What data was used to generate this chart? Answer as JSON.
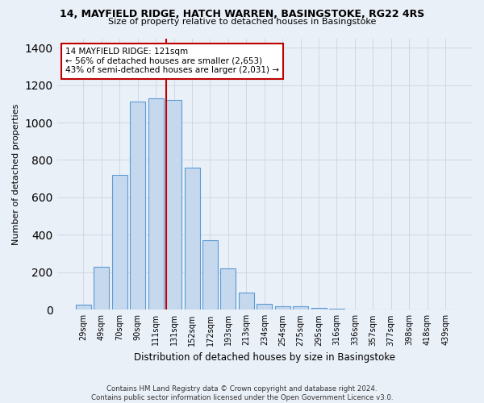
{
  "title_line1": "14, MAYFIELD RIDGE, HATCH WARREN, BASINGSTOKE, RG22 4RS",
  "title_line2": "Size of property relative to detached houses in Basingstoke",
  "xlabel": "Distribution of detached houses by size in Basingstoke",
  "ylabel": "Number of detached properties",
  "footnote": "Contains HM Land Registry data © Crown copyright and database right 2024.\nContains public sector information licensed under the Open Government Licence v3.0.",
  "bar_labels": [
    "29sqm",
    "49sqm",
    "70sqm",
    "90sqm",
    "111sqm",
    "131sqm",
    "152sqm",
    "172sqm",
    "193sqm",
    "213sqm",
    "234sqm",
    "254sqm",
    "275sqm",
    "295sqm",
    "316sqm",
    "336sqm",
    "357sqm",
    "377sqm",
    "398sqm",
    "418sqm",
    "439sqm"
  ],
  "bar_values": [
    25,
    230,
    720,
    1110,
    1130,
    1120,
    760,
    370,
    220,
    90,
    30,
    20,
    18,
    10,
    7,
    0,
    0,
    0,
    0,
    0,
    0
  ],
  "bar_color": "#c5d8ed",
  "bar_edgecolor": "#5b9bd5",
  "highlight_index": 5,
  "highlight_color": "#c00000",
  "ylim": [
    0,
    1450
  ],
  "yticks": [
    0,
    200,
    400,
    600,
    800,
    1000,
    1200,
    1400
  ],
  "annotation_text": "14 MAYFIELD RIDGE: 121sqm\n← 56% of detached houses are smaller (2,653)\n43% of semi-detached houses are larger (2,031) →",
  "annotation_box_color": "#ffffff",
  "annotation_box_edgecolor": "#c00000",
  "grid_color": "#d0d8e4",
  "background_color": "#eaf0f8",
  "figsize": [
    6.0,
    5.0
  ],
  "dpi": 100
}
